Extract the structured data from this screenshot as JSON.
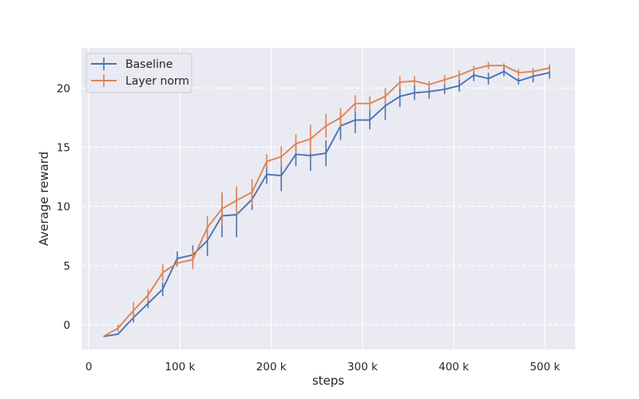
{
  "chart_data": {
    "type": "line",
    "xlabel": "steps",
    "ylabel": "Average reward",
    "xlim": [
      -8000,
      533000
    ],
    "ylim": [
      -2.1,
      23.4
    ],
    "xticks": [
      0,
      100000,
      200000,
      300000,
      400000,
      500000
    ],
    "xtick_labels": [
      "0",
      "100 k",
      "200 k",
      "300 k",
      "400 k",
      "500 k"
    ],
    "yticks": [
      0,
      5,
      10,
      15,
      20
    ],
    "ytick_labels": [
      "0",
      "5",
      "10",
      "15",
      "20"
    ],
    "grid": true,
    "legend_position": "top-left",
    "series": [
      {
        "name": "Baseline",
        "color": "#4c72b0",
        "x": [
          16000,
          32000,
          49000,
          65000,
          81000,
          97000,
          114000,
          130000,
          146000,
          162000,
          179000,
          195000,
          211000,
          227000,
          243000,
          260000,
          276000,
          292000,
          308000,
          325000,
          341000,
          357000,
          373000,
          390000,
          406000,
          422000,
          438000,
          455000,
          471000,
          487000,
          505000
        ],
        "y": [
          -1.0,
          -0.8,
          0.6,
          1.8,
          3.0,
          5.6,
          5.9,
          7.1,
          9.2,
          9.3,
          10.6,
          12.7,
          12.6,
          14.4,
          14.3,
          14.5,
          16.8,
          17.3,
          17.3,
          18.5,
          19.3,
          19.6,
          19.7,
          19.9,
          20.2,
          21.1,
          20.8,
          21.4,
          20.6,
          21.0,
          21.3
        ],
        "err": [
          0,
          0,
          0.4,
          0.4,
          0.6,
          0.6,
          0.8,
          1.3,
          1.8,
          1.9,
          0.9,
          0.8,
          1.3,
          1.0,
          1.3,
          1.1,
          1.2,
          1.1,
          0.8,
          1.2,
          0.9,
          0.6,
          0.6,
          0.4,
          0.5,
          0.5,
          0.5,
          0.4,
          0.3,
          0.5,
          0.5
        ]
      },
      {
        "name": "Layer norm",
        "color": "#dd8452",
        "x": [
          16000,
          32000,
          49000,
          65000,
          81000,
          97000,
          114000,
          130000,
          146000,
          162000,
          179000,
          195000,
          211000,
          227000,
          243000,
          260000,
          276000,
          292000,
          308000,
          325000,
          341000,
          357000,
          373000,
          390000,
          406000,
          422000,
          438000,
          455000,
          471000,
          487000,
          505000
        ],
        "y": [
          -1.0,
          -0.3,
          1.2,
          2.5,
          4.4,
          5.2,
          5.5,
          8.2,
          9.8,
          10.5,
          11.2,
          13.8,
          14.2,
          15.3,
          15.7,
          16.8,
          17.5,
          18.7,
          18.7,
          19.3,
          20.5,
          20.6,
          20.3,
          20.7,
          21.1,
          21.6,
          21.9,
          21.9,
          21.3,
          21.4,
          21.7
        ],
        "err": [
          0,
          0.3,
          0.7,
          0.5,
          0.7,
          0.3,
          0.8,
          1.0,
          1.4,
          1.2,
          1.1,
          0.6,
          0.9,
          0.8,
          1.2,
          1.0,
          0.8,
          0.7,
          0.6,
          0.7,
          0.5,
          0.4,
          0.3,
          0.4,
          0.4,
          0.3,
          0.3,
          0.2,
          0.3,
          0.3,
          0.3
        ]
      }
    ]
  }
}
